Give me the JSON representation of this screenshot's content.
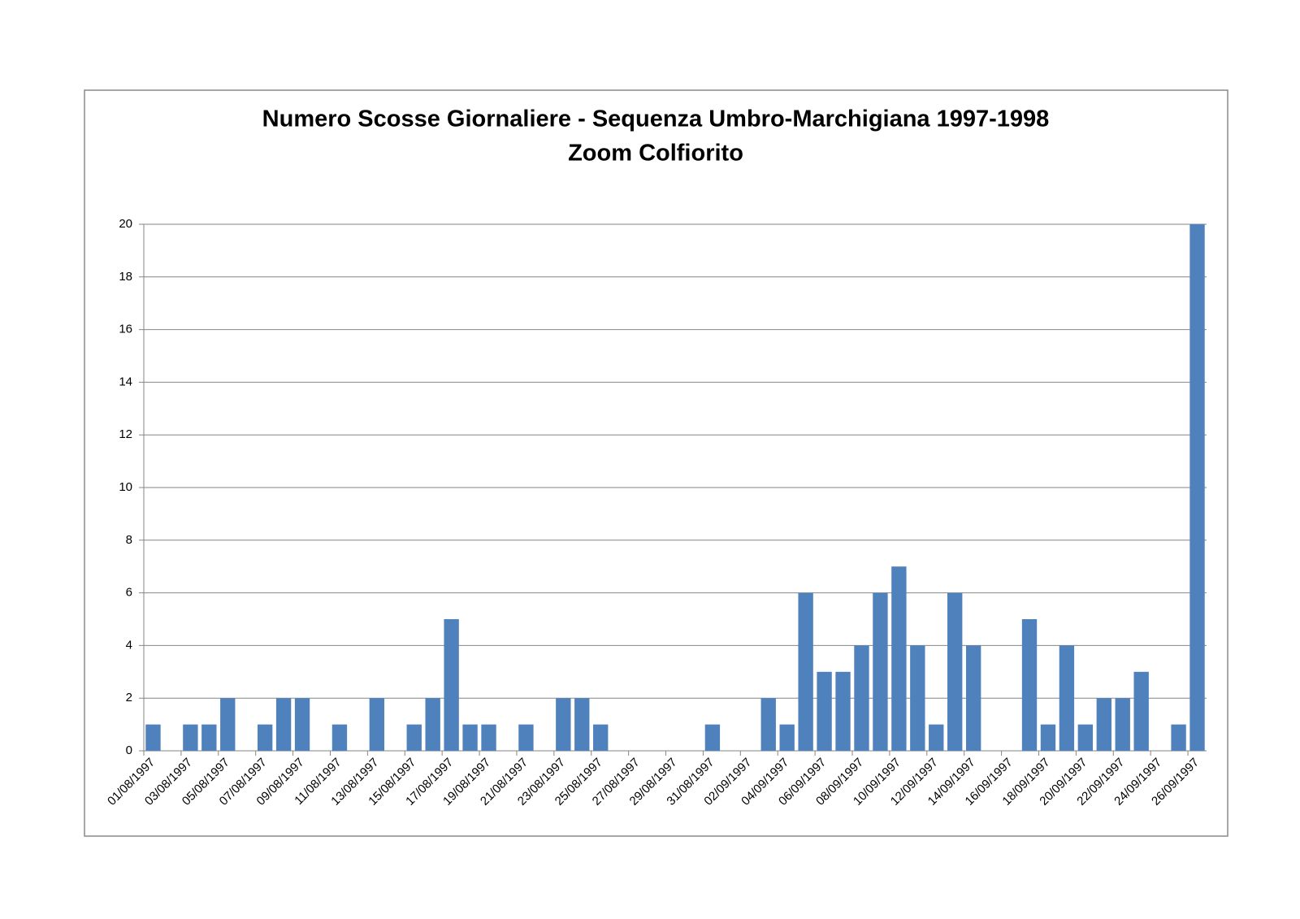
{
  "chart_data": {
    "type": "bar",
    "title": "Numero Scosse Giornaliere - Sequenza Umbro-Marchigiana 1997-1998",
    "subtitle": "Zoom Colfiorito",
    "categories": [
      "01/08/1997",
      null,
      "03/08/1997",
      null,
      "05/08/1997",
      null,
      "07/08/1997",
      null,
      "09/08/1997",
      null,
      "11/08/1997",
      null,
      "13/08/1997",
      null,
      "15/08/1997",
      null,
      "17/08/1997",
      null,
      "19/08/1997",
      null,
      "21/08/1997",
      null,
      "23/08/1997",
      null,
      "25/08/1997",
      null,
      "27/08/1997",
      null,
      "29/08/1997",
      null,
      "31/08/1997",
      null,
      "02/09/1997",
      null,
      "04/09/1997",
      null,
      "06/09/1997",
      null,
      "08/09/1997",
      null,
      "10/09/1997",
      null,
      "12/09/1997",
      null,
      "14/09/1997",
      null,
      "16/09/1997",
      null,
      "18/09/1997",
      null,
      "20/09/1997",
      null,
      "22/09/1997",
      null,
      "24/09/1997",
      null,
      "26/09/1997"
    ],
    "values": [
      1,
      0,
      1,
      1,
      2,
      0,
      1,
      2,
      2,
      0,
      1,
      0,
      2,
      0,
      1,
      2,
      5,
      1,
      1,
      0,
      1,
      0,
      2,
      2,
      1,
      0,
      0,
      0,
      0,
      0,
      1,
      0,
      0,
      2,
      1,
      6,
      3,
      3,
      4,
      6,
      7,
      4,
      1,
      6,
      4,
      0,
      0,
      5,
      1,
      4,
      1,
      2,
      2,
      3,
      0,
      1,
      20
    ],
    "color": "#4f81bd",
    "ylim": [
      0,
      20
    ],
    "yticks": [
      0,
      2,
      4,
      6,
      8,
      10,
      12,
      14,
      16,
      18,
      20
    ],
    "grid": true
  }
}
